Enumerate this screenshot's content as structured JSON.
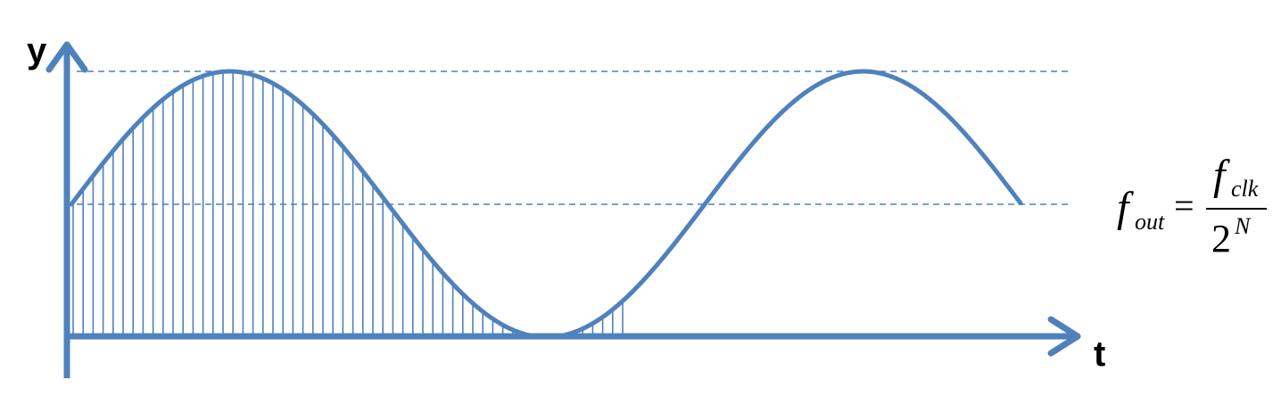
{
  "axes": {
    "x_label": "t",
    "y_label": "y"
  },
  "signal": {
    "description_type": "sampled-sine",
    "cycles_shown": 1.5,
    "sampled_cycles": 0.875
  },
  "formula": {
    "lhs_var": "f",
    "lhs_sub": "out",
    "eq": "=",
    "num_var": "f",
    "num_sub": "clk",
    "den_base": "2",
    "den_exp": "N"
  },
  "colors": {
    "axis": "#4F81BD",
    "wave": "#4F81BD",
    "dash": "#4F81BD"
  }
}
